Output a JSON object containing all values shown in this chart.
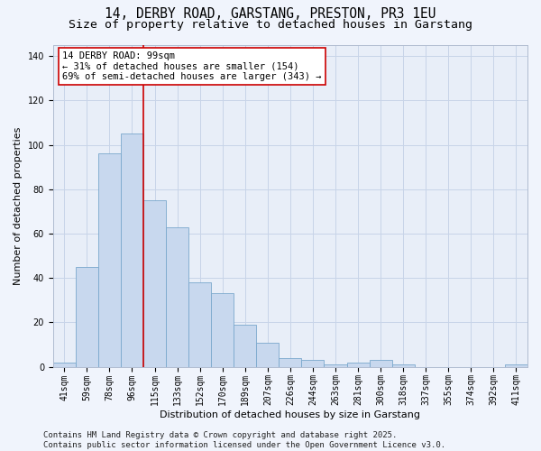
{
  "title_line1": "14, DERBY ROAD, GARSTANG, PRESTON, PR3 1EU",
  "title_line2": "Size of property relative to detached houses in Garstang",
  "xlabel": "Distribution of detached houses by size in Garstang",
  "ylabel": "Number of detached properties",
  "categories": [
    "41sqm",
    "59sqm",
    "78sqm",
    "96sqm",
    "115sqm",
    "133sqm",
    "152sqm",
    "170sqm",
    "189sqm",
    "207sqm",
    "226sqm",
    "244sqm",
    "263sqm",
    "281sqm",
    "300sqm",
    "318sqm",
    "337sqm",
    "355sqm",
    "374sqm",
    "392sqm",
    "411sqm"
  ],
  "values": [
    2,
    45,
    96,
    105,
    75,
    63,
    38,
    33,
    19,
    11,
    4,
    3,
    1,
    2,
    3,
    1,
    0,
    0,
    0,
    0,
    1
  ],
  "bar_color": "#c8d8ee",
  "bar_edge_color": "#7aa8cc",
  "vline_index": 3,
  "vline_color": "#cc0000",
  "annotation_text": "14 DERBY ROAD: 99sqm\n← 31% of detached houses are smaller (154)\n69% of semi-detached houses are larger (343) →",
  "annotation_box_facecolor": "#ffffff",
  "annotation_box_edgecolor": "#cc0000",
  "ylim": [
    0,
    145
  ],
  "yticks": [
    0,
    20,
    40,
    60,
    80,
    100,
    120,
    140
  ],
  "grid_color": "#c8d4e8",
  "plot_bg_color": "#e8eef8",
  "fig_bg_color": "#f0f4fc",
  "footer": "Contains HM Land Registry data © Crown copyright and database right 2025.\nContains public sector information licensed under the Open Government Licence v3.0.",
  "title_fontsize": 10.5,
  "subtitle_fontsize": 9.5,
  "axis_label_fontsize": 8,
  "tick_fontsize": 7,
  "annotation_fontsize": 7.5,
  "footer_fontsize": 6.5
}
